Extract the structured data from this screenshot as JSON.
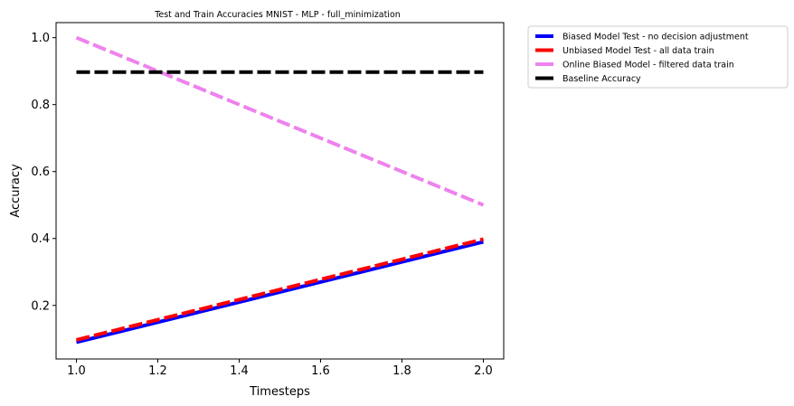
{
  "chart_data": {
    "type": "line",
    "title": "Test and Train Accuracies MNIST - MLP - full_minimization",
    "xlabel": "Timesteps",
    "ylabel": "Accuracy",
    "xlim": [
      0.95,
      2.05
    ],
    "ylim": [
      0.04,
      1.045
    ],
    "xticks": [
      1.0,
      1.2,
      1.4,
      1.6,
      1.8,
      2.0
    ],
    "xtick_labels": [
      "1.0",
      "1.2",
      "1.4",
      "1.6",
      "1.8",
      "2.0"
    ],
    "yticks": [
      0.2,
      0.4,
      0.6,
      0.8,
      1.0
    ],
    "ytick_labels": [
      "0.2",
      "0.4",
      "0.6",
      "0.8",
      "1.0"
    ],
    "grid": false,
    "legend_position": "outside-right-top",
    "series": [
      {
        "name": "Biased Model Test - no decision adjustment",
        "x": [
          1.0,
          2.0
        ],
        "y": [
          0.09,
          0.39
        ],
        "color": "#0000ff",
        "dashed": false
      },
      {
        "name": "Unbiased Model Test - all data train",
        "x": [
          1.0,
          2.0
        ],
        "y": [
          0.097,
          0.398
        ],
        "color": "#ff0000",
        "dashed": true
      },
      {
        "name": "Online Biased Model - filtered data train",
        "x": [
          1.0,
          2.0
        ],
        "y": [
          1.0,
          0.5
        ],
        "color": "#ee82ee",
        "dashed": true
      },
      {
        "name": "Baseline Accuracy",
        "x": [
          1.0,
          2.0
        ],
        "y": [
          0.897,
          0.897
        ],
        "color": "#000000",
        "dashed": true
      }
    ]
  }
}
